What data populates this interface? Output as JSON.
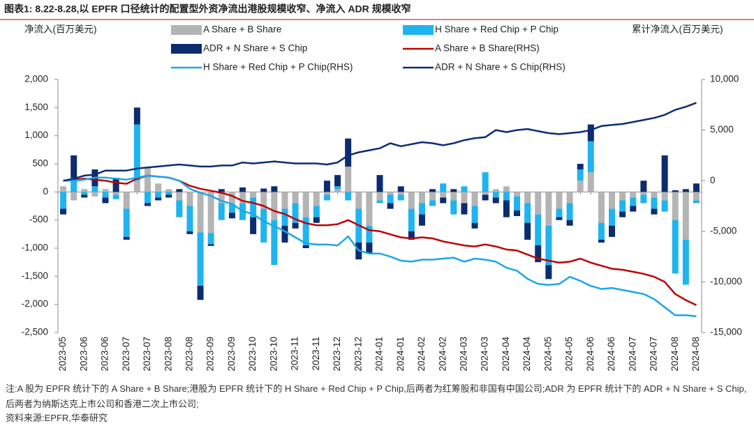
{
  "title": "图表1:  8.22-8.28,以 EPFR 口径统计的配置型外资净流出港股规模收窄、净流入 ADR 规模收窄",
  "chart_data": {
    "type": "bar",
    "y_label": "净流入(百万美元)",
    "y2_label": "累计净流入(百万美元)",
    "categories": [
      "2023-05",
      null,
      "2023-06",
      null,
      "2023-06",
      null,
      "2023-07",
      null,
      "2023-07",
      null,
      "2023-08",
      null,
      "2023-08",
      null,
      "2023-09",
      null,
      "2023-09",
      null,
      "2023-10",
      null,
      "2023-10",
      null,
      "2023-11",
      null,
      "2023-11",
      null,
      "2023-12",
      null,
      "2023-12",
      null,
      "2024-01",
      null,
      "2024-01",
      null,
      "2024-02",
      null,
      "2024-02",
      null,
      "2024-03",
      null,
      "2024-03",
      null,
      "2024-04",
      null,
      "2024-04",
      null,
      "2024-05",
      null,
      "2024-05",
      null,
      "2024-06",
      null,
      "2024-06",
      null,
      "2024-07",
      null,
      "2024-07",
      null,
      "2024-08",
      null,
      "2024-08"
    ],
    "ylim": [
      -2500,
      2000
    ],
    "yticks": [
      {
        "value": 2000,
        "label": "2,000"
      },
      {
        "value": 1500,
        "label": "1,500"
      },
      {
        "value": 1000,
        "label": "1,000"
      },
      500,
      0,
      -500,
      {
        "value": -1000,
        "label": "-1,000"
      },
      {
        "value": -1500,
        "label": "-1,500"
      },
      {
        "value": -2000,
        "label": "-2,000"
      },
      {
        "value": -2500,
        "label": "-2,500"
      }
    ],
    "y2lim": [
      -15000,
      10000
    ],
    "y2ticks": [
      {
        "value": 10000,
        "label": "10,000"
      },
      {
        "value": 5000,
        "label": "5,000"
      },
      0,
      {
        "value": -5000,
        "label": "-5,000"
      },
      {
        "value": -10000,
        "label": "-10,000"
      },
      {
        "value": -15000,
        "label": "-15,000"
      }
    ],
    "series": [
      {
        "name": "A Share + B Share",
        "type": "bar",
        "color": "#b4b4b4",
        "values": [
          100,
          -150,
          50,
          -80,
          50,
          -50,
          -300,
          200,
          450,
          150,
          50,
          -150,
          -250,
          -720,
          -730,
          -200,
          -220,
          -200,
          -100,
          -300,
          -500,
          -300,
          -200,
          -450,
          -250,
          -50,
          50,
          450,
          -300,
          -600,
          -150,
          -50,
          -50,
          -300,
          -200,
          -150,
          -100,
          -150,
          -200,
          -250,
          -50,
          50,
          100,
          -80,
          -200,
          -400,
          -600,
          -300,
          -200,
          200,
          350,
          -550,
          -300,
          -150,
          -100,
          -50,
          -100,
          -150,
          -500,
          -850,
          -150
        ]
      },
      {
        "name": "H Share + Red Chip + P Chip",
        "type": "bar",
        "color": "#1eb4f0",
        "values": [
          -300,
          250,
          -50,
          100,
          -100,
          -80,
          -500,
          1000,
          -200,
          -100,
          -50,
          -300,
          -450,
          -950,
          -200,
          -300,
          -150,
          -300,
          -350,
          -600,
          -800,
          -300,
          -350,
          -500,
          -200,
          -100,
          50,
          -150,
          -600,
          -300,
          -50,
          -150,
          -100,
          -400,
          -200,
          -100,
          150,
          -250,
          100,
          -300,
          350,
          -100,
          -150,
          -250,
          -350,
          -550,
          -700,
          -150,
          -300,
          200,
          550,
          -300,
          -300,
          -200,
          -150,
          -150,
          -200,
          -200,
          -950,
          -800,
          -50
        ]
      },
      {
        "name": "ADR + N Share + S Chip",
        "type": "bar",
        "color": "#0c2c6e",
        "values": [
          -100,
          400,
          -50,
          300,
          -100,
          250,
          -50,
          300,
          -50,
          -50,
          -50,
          50,
          -50,
          -250,
          -30,
          50,
          -100,
          80,
          -300,
          60,
          100,
          -300,
          -100,
          -50,
          -100,
          200,
          200,
          500,
          -300,
          -200,
          300,
          -100,
          100,
          -150,
          -200,
          50,
          -100,
          50,
          -200,
          -100,
          -100,
          -100,
          -300,
          -100,
          -300,
          -300,
          -250,
          -50,
          -100,
          100,
          300,
          -50,
          -200,
          -100,
          -100,
          200,
          -100,
          650,
          30,
          50,
          150
        ]
      },
      {
        "name": "A Share + B Share(RHS)",
        "type": "line",
        "axis": "y2",
        "color": "#c00000",
        "values": [
          0,
          100,
          200,
          100,
          0,
          -200,
          -300,
          200,
          500,
          400,
          300,
          0,
          -500,
          -800,
          -1000,
          -1200,
          -1500,
          -2000,
          -2200,
          -2500,
          -3000,
          -3300,
          -3800,
          -4200,
          -4400,
          -4400,
          -4300,
          -3900,
          -4400,
          -4900,
          -5000,
          -5300,
          -5600,
          -5700,
          -5600,
          -5700,
          -6000,
          -6200,
          -6400,
          -6500,
          -6300,
          -6500,
          -6800,
          -6900,
          -7300,
          -7700,
          -7900,
          -8100,
          -8000,
          -7700,
          -8100,
          -8400,
          -8700,
          -8800,
          -9000,
          -9200,
          -9500,
          -10000,
          -11200,
          -11800,
          -12300
        ]
      },
      {
        "name": "H Share + Red Chip + P Chip(RHS)",
        "type": "line",
        "axis": "y2",
        "color": "#1aa7e8",
        "values": [
          0,
          0,
          100,
          300,
          300,
          200,
          100,
          300,
          500,
          400,
          300,
          0,
          -800,
          -1200,
          -1500,
          -2000,
          -2300,
          -3000,
          -3300,
          -4000,
          -4500,
          -5000,
          -5600,
          -6200,
          -6300,
          -6300,
          -6400,
          -5500,
          -6900,
          -7200,
          -7200,
          -7500,
          -7900,
          -8000,
          -7800,
          -7800,
          -7700,
          -7600,
          -8000,
          -7700,
          -7800,
          -8000,
          -8600,
          -8900,
          -9700,
          -10200,
          -10300,
          -10200,
          -9500,
          -9900,
          -10400,
          -10700,
          -10600,
          -10800,
          -11000,
          -11200,
          -11700,
          -12500,
          -13300,
          -13300,
          -13400
        ]
      },
      {
        "name": "ADR + N Share + S Chip(RHS)",
        "type": "line",
        "axis": "y2",
        "color": "#0a2d75",
        "values": [
          0,
          200,
          500,
          600,
          1000,
          1000,
          1000,
          1200,
          1300,
          1400,
          1500,
          1600,
          1500,
          1400,
          1400,
          1500,
          1500,
          1800,
          1700,
          1800,
          1900,
          1800,
          1700,
          1700,
          1700,
          1600,
          1800,
          2500,
          2800,
          3000,
          3200,
          3700,
          3400,
          3600,
          3800,
          3700,
          3500,
          3700,
          4000,
          4200,
          4300,
          5000,
          4800,
          5000,
          5100,
          4900,
          4700,
          4600,
          4700,
          4800,
          5000,
          5400,
          5500,
          5600,
          5800,
          6000,
          6200,
          6500,
          7000,
          7300,
          7700
        ]
      }
    ]
  },
  "note": "注:A 股为 EPFR 统计下的 A Share + B Share;港股为 EPFR 统计下的 H Share + Red Chip + P Chip,后两者为红筹股和非国有中国公司;ADR 为 EPFR 统计下的 ADR + N Share + S Chip,后两者为纳斯达克上市公司和香港二次上市公司;",
  "source": "资料来源:EPFR,华泰研究"
}
